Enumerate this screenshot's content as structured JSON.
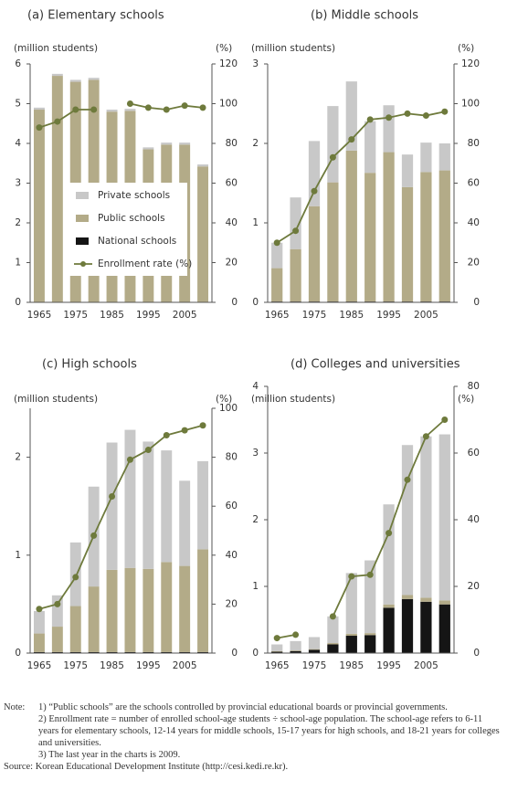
{
  "chart_data": [
    {
      "type": "bar",
      "title": "(a) Elementary schools",
      "ylabel": "(million students)",
      "y2label": "(%)",
      "categories": [
        "1965",
        null,
        "1975",
        null,
        "1985",
        null,
        "1995",
        null,
        "2005",
        null
      ],
      "ylim": [
        0,
        6
      ],
      "yticks": [
        0,
        1,
        2,
        3,
        4,
        5,
        6
      ],
      "y2lim": [
        0,
        120
      ],
      "y2ticks": [
        0,
        20,
        40,
        60,
        80,
        100,
        120
      ],
      "legend": "center-left",
      "series": [
        {
          "name": "Private schools",
          "color": "#c8c8c8",
          "values": [
            0.05,
            0.05,
            0.05,
            0.05,
            0.05,
            0.05,
            0.05,
            0.05,
            0.05,
            0.05
          ]
        },
        {
          "name": "Public schools",
          "color": "#b3ab88",
          "values": [
            4.84,
            5.69,
            5.54,
            5.59,
            4.79,
            4.81,
            3.84,
            3.96,
            3.96,
            3.41
          ]
        },
        {
          "name": "National schools",
          "color": "#151515",
          "values": [
            0.01,
            0.01,
            0.01,
            0.01,
            0.01,
            0.01,
            0.01,
            0.01,
            0.01,
            0.01
          ]
        },
        {
          "name": "Enrollment rate (%)",
          "type": "line",
          "axis": "y2",
          "color": "#6e7a3c",
          "values": [
            88,
            91,
            97,
            97,
            null,
            100,
            98,
            97,
            99,
            98
          ]
        }
      ]
    },
    {
      "type": "bar",
      "title": "(b) Middle schools",
      "ylabel": "(million students)",
      "y2label": "(%)",
      "categories": [
        "1965",
        null,
        "1975",
        null,
        "1985",
        null,
        "1995",
        null,
        "2005",
        null
      ],
      "ylim": [
        0,
        3
      ],
      "yticks": [
        0,
        1,
        2,
        3
      ],
      "y2lim": [
        0,
        120
      ],
      "y2ticks": [
        0,
        20,
        40,
        60,
        80,
        100,
        120
      ],
      "series": [
        {
          "color": "#c8c8c8",
          "values": [
            0.32,
            0.65,
            0.82,
            0.96,
            0.87,
            0.65,
            0.59,
            0.41,
            0.37,
            0.34
          ]
        },
        {
          "color": "#b3ab88",
          "values": [
            0.42,
            0.66,
            1.2,
            1.5,
            1.9,
            1.62,
            1.88,
            1.44,
            1.63,
            1.65
          ]
        },
        {
          "color": "#151515",
          "values": [
            0.01,
            0.01,
            0.01,
            0.01,
            0.01,
            0.01,
            0.01,
            0.01,
            0.01,
            0.01
          ]
        },
        {
          "type": "line",
          "axis": "y2",
          "color": "#6e7a3c",
          "values": [
            30,
            36,
            56,
            73,
            82,
            92,
            93,
            95,
            94,
            96
          ]
        }
      ]
    },
    {
      "type": "bar",
      "title": "(c) High schools",
      "ylabel": "(million students)",
      "y2label": "(%)",
      "categories": [
        "1965",
        null,
        "1975",
        null,
        "1985",
        null,
        "1995",
        null,
        "2005",
        null
      ],
      "ylim": [
        0,
        2.5
      ],
      "yticks": [
        0,
        1,
        2
      ],
      "y2lim": [
        0,
        100
      ],
      "y2ticks": [
        0,
        20,
        40,
        60,
        80,
        100
      ],
      "series": [
        {
          "color": "#c8c8c8",
          "values": [
            0.23,
            0.32,
            0.65,
            1.02,
            1.3,
            1.41,
            1.3,
            1.14,
            0.87,
            0.9
          ]
        },
        {
          "color": "#b3ab88",
          "values": [
            0.19,
            0.26,
            0.47,
            0.67,
            0.84,
            0.86,
            0.85,
            0.92,
            0.88,
            1.05
          ]
        },
        {
          "color": "#151515",
          "values": [
            0.01,
            0.01,
            0.01,
            0.01,
            0.01,
            0.01,
            0.01,
            0.01,
            0.01,
            0.01
          ]
        },
        {
          "type": "line",
          "axis": "y2",
          "color": "#6e7a3c",
          "values": [
            18,
            20,
            31,
            48,
            64,
            79,
            83,
            89,
            91,
            93
          ]
        }
      ]
    },
    {
      "type": "bar",
      "title": "(d) Colleges and universities",
      "ylabel": "(million students)",
      "y2label": "(%)",
      "categories": [
        "1965",
        null,
        "1975",
        null,
        "1985",
        null,
        "1995",
        null,
        "2005",
        null
      ],
      "ylim": [
        0,
        4
      ],
      "yticks": [
        0,
        1,
        2,
        3,
        4
      ],
      "y2lim": [
        0,
        80
      ],
      "y2ticks": [
        0,
        20,
        40,
        60,
        80
      ],
      "series": [
        {
          "color": "#c8c8c8",
          "values": [
            0.1,
            0.14,
            0.18,
            0.4,
            0.91,
            1.09,
            1.5,
            2.25,
            2.42,
            2.49
          ]
        },
        {
          "color": "#b3ab88",
          "values": [
            0.01,
            0.01,
            0.01,
            0.02,
            0.03,
            0.03,
            0.05,
            0.06,
            0.06,
            0.06
          ]
        },
        {
          "color": "#151515",
          "values": [
            0.02,
            0.03,
            0.05,
            0.13,
            0.26,
            0.27,
            0.68,
            0.81,
            0.77,
            0.73
          ]
        },
        {
          "type": "line",
          "axis": "y2",
          "color": "#6e7a3c",
          "values": [
            4.5,
            5.5,
            null,
            11,
            23,
            23.5,
            36,
            52,
            65,
            70
          ]
        }
      ]
    }
  ],
  "notes": {
    "label": "Note:",
    "items": [
      "1) “Public schools” are the schools controlled by provincial educational boards or provincial governments.",
      "2) Enrollment rate = number of enrolled school-age students ÷ school-age population. The school-age refers to 6-11 years for elementary schools, 12-14 years for middle schools, 15-17 years for high schools, and 18-21 years for colleges and universities.",
      "3) The last year in the charts is 2009."
    ],
    "source": "Source: Korean Educational Development Institute (http://cesi.kedi.re.kr)."
  }
}
